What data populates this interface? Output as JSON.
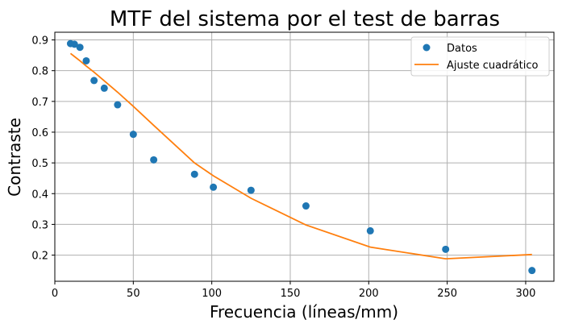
{
  "chart_data": {
    "type": "scatter",
    "title": "MTF del sistema por el test de barras",
    "xlabel": "Frecuencia (líneas/mm)",
    "ylabel": "Contraste",
    "xlim": [
      0,
      318
    ],
    "ylim": [
      0.115,
      0.925
    ],
    "xticks": [
      0,
      50,
      100,
      150,
      200,
      250,
      300
    ],
    "yticks": [
      0.2,
      0.3,
      0.4,
      0.5,
      0.6,
      0.7,
      0.8,
      0.9
    ],
    "grid": true,
    "legend_position": "top-right",
    "series": [
      {
        "name": "Datos",
        "kind": "markers",
        "color": "#1f77b4",
        "x": [
          10,
          12.5,
          16,
          20,
          25,
          31.5,
          40,
          50,
          63,
          89,
          101,
          125,
          160,
          201,
          249,
          304
        ],
        "y": [
          0.888,
          0.886,
          0.876,
          0.832,
          0.768,
          0.743,
          0.689,
          0.593,
          0.51,
          0.463,
          0.421,
          0.411,
          0.36,
          0.279,
          0.219,
          0.15
        ]
      },
      {
        "name": "Ajuste cuadrático",
        "kind": "line",
        "color": "#ff7f0e",
        "x": [
          10,
          12.5,
          16,
          20,
          25,
          31.5,
          40,
          50,
          63,
          89,
          101,
          125,
          160,
          201,
          249,
          304
        ],
        "y": [
          0.856,
          0.846,
          0.832,
          0.815,
          0.795,
          0.767,
          0.73,
          0.684,
          0.622,
          0.5,
          0.458,
          0.385,
          0.298,
          0.226,
          0.188,
          0.202
        ]
      }
    ]
  }
}
